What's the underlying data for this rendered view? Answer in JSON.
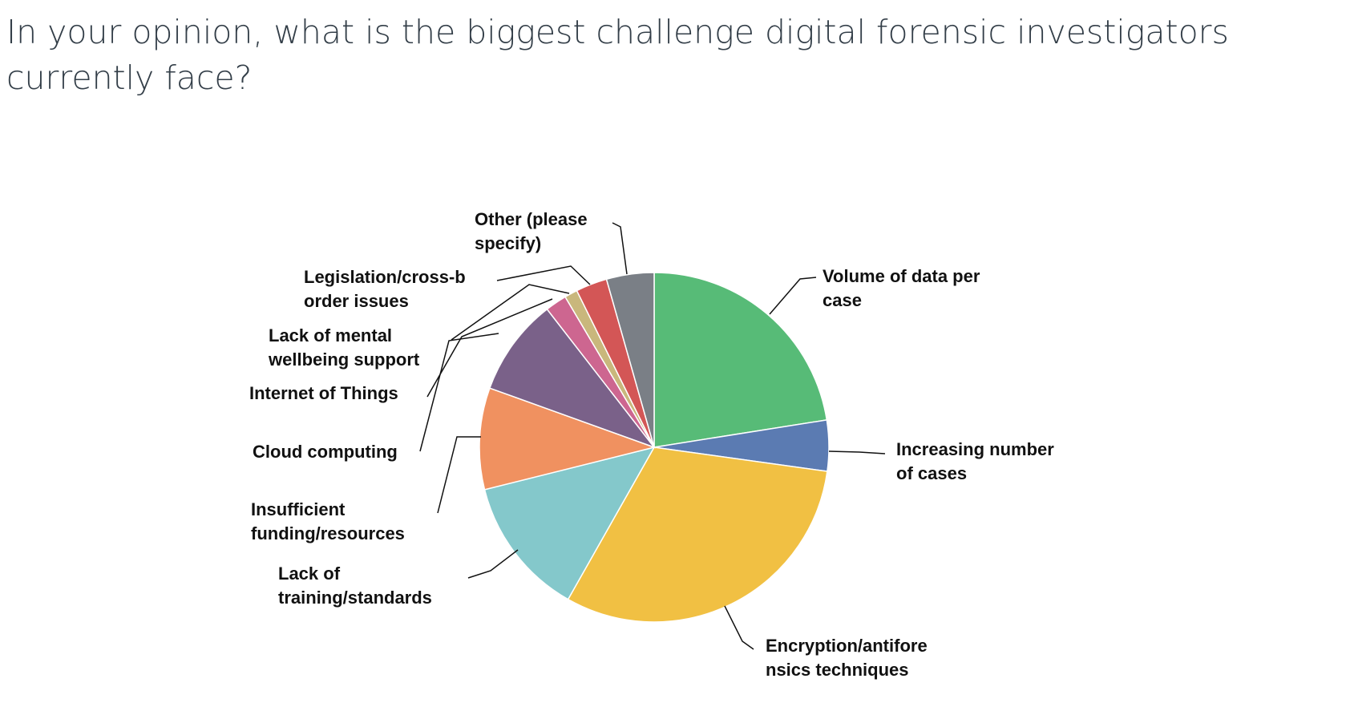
{
  "question": {
    "title_line1": "In your opinion, what is the biggest challenge digital forensic investigators",
    "title_line2": "currently face?"
  },
  "chart_data": {
    "type": "pie",
    "start_angle_deg": 0,
    "direction": "clockwise",
    "slices": [
      {
        "label_lines": [
          "Volume of data per",
          "case"
        ],
        "value": 22.5,
        "color": "#57bb77"
      },
      {
        "label_lines": [
          "Increasing number",
          "of cases"
        ],
        "value": 4.7,
        "color": "#5b7bb2"
      },
      {
        "label_lines": [
          "Encryption/antifore",
          "nsics techniques"
        ],
        "value": 31.0,
        "color": "#f1c043"
      },
      {
        "label_lines": [
          "Lack of",
          "training/standards"
        ],
        "value": 12.9,
        "color": "#84c8cb"
      },
      {
        "label_lines": [
          "Insufficient",
          "funding/resources"
        ],
        "value": 9.4,
        "color": "#f09160"
      },
      {
        "label_lines": [
          "Cloud computing"
        ],
        "value": 9.0,
        "color": "#7a6189"
      },
      {
        "label_lines": [
          "Internet of Things"
        ],
        "value": 2.0,
        "color": "#cd6690"
      },
      {
        "label_lines": [
          "Lack of mental",
          "wellbeing support"
        ],
        "value": 1.2,
        "color": "#c9b77c"
      },
      {
        "label_lines": [
          "Legislation/cross-b",
          "order issues"
        ],
        "value": 2.9,
        "color": "#d35656"
      },
      {
        "label_lines": [
          "Other (please",
          "specify)"
        ],
        "value": 4.4,
        "color": "#7a7f86"
      }
    ]
  }
}
